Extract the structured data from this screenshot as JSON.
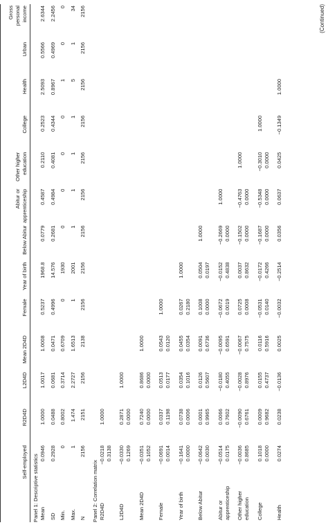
{
  "table": {
    "header": [
      "Self-employed",
      "R2D4D",
      "L2D4D",
      "Mean 2D4D",
      "Female",
      "Year of birth",
      "Below Abitur",
      "Abitur or apprenticeship",
      "Other higher education",
      "College",
      "Health",
      "Urban",
      "Gross personal income"
    ],
    "panels": [
      {
        "title": "Panel 1: Descriptive statistics",
        "rows": [
          {
            "label": "Mean",
            "values": [
              "0.0946",
              "1.0000",
              "1.0017",
              "1.0008",
              "0.5237",
              "1968.8",
              "0.0779",
              "0.4587",
              "0.2110",
              "0.2523",
              "2.5093",
              "0.5566",
              "2.6344"
            ]
          },
          {
            "label": "SD",
            "values": [
              "0.2928",
              "0.0488",
              "0.0681",
              "0.0471",
              "0.4996",
              "14.576",
              "0.2681",
              "0.4984",
              "0.4081",
              "0.4344",
              "0.8967",
              "0.4969",
              "2.2456"
            ]
          },
          {
            "label": "Min.",
            "values": [
              "0",
              "0.8002",
              "0.3714",
              "0.6709",
              "0",
              "1930",
              "0",
              "0",
              "0",
              "0",
              "1",
              "0",
              "0"
            ]
          },
          {
            "label": "Max.",
            "values": [
              "1",
              "1.474",
              "2.2727",
              "1.6513",
              "1",
              "2001",
              "1",
              "1",
              "1",
              "1",
              "5",
              "1",
              "34"
            ]
          },
          {
            "label": "N",
            "values": [
              "2156",
              "2151",
              "2156",
              "2138",
              "2156",
              "2156",
              "2156",
              "2156",
              "2156",
              "2156",
              "2156",
              "2156",
              "2156"
            ]
          }
        ]
      },
      {
        "title": "Panel 2: Correlation matrix",
        "rows": [
          {
            "label": "R2D4D",
            "values": [
              [
                "−0.0218",
                "0.3138"
              ],
              [
                "1.0000"
              ]
            ]
          },
          {
            "label": "L2D4D",
            "values": [
              [
                "−0.0330",
                "0.1269"
              ],
              [
                "0.2871",
                "0.0000"
              ],
              [
                "1.0000"
              ]
            ]
          },
          {
            "label": "Mean 2D4D",
            "values": [
              [
                "−0.0351",
                "0.1052"
              ],
              [
                "0.7240",
                "0.0000"
              ],
              [
                "0.8686",
                "0.0000"
              ],
              [
                "1.0000"
              ]
            ]
          },
          {
            "label": "Female",
            "values": [
              [
                "−0.0691",
                "0.0014"
              ],
              [
                "0.0337",
                "0.1198"
              ],
              [
                "0.0513",
                "0.0177"
              ],
              [
                "0.0543",
                "0.0120"
              ],
              [
                "1.0000"
              ]
            ]
          },
          {
            "label": "Year of birth",
            "values": [
              [
                "−0.1641",
                "0.0000"
              ],
              [
                "0.0738",
                "0.0006"
              ],
              [
                "0.0354",
                "0.1016"
              ],
              [
                "0.0455",
                "0.0354"
              ],
              [
                "0.0267",
                "0.2180"
              ],
              [
                "1.0000"
              ]
            ]
          },
          {
            "label": "Below Abitur",
            "values": [
              [
                "−0.0642",
                "0.0030"
              ],
              [
                "0.0001",
                "0.9965"
              ],
              [
                "0.0126",
                "0.5607"
              ],
              [
                "0.0091",
                "0.6736"
              ],
              [
                "0.1008",
                "0.0000"
              ],
              [
                "0.0504",
                "0.0197"
              ],
              [
                "1.0000"
              ]
            ]
          },
          {
            "label": "Abitur or apprenticeship",
            "values": [
              [
                "−0.0514",
                "0.0175"
              ],
              [
                "0.0066",
                "0.7602"
              ],
              [
                "−0.0180",
                "0.4055"
              ],
              [
                "−0.0095",
                "0.6591"
              ],
              [
                "−0.0672",
                "0.0019"
              ],
              [
                "−0.0152",
                "0.4838"
              ],
              [
                "−0.2669",
                "0.0000"
              ],
              [
                "1.0000"
              ]
            ]
          },
          {
            "label": "Other higher education",
            "values": [
              [
                "−0.0036",
                "0.8685"
              ],
              [
                "−0.0090",
                "0.6761"
              ],
              [
                "−0.0028",
                "0.8976"
              ],
              [
                "−0.0067",
                "0.7575"
              ],
              [
                "0.0725",
                "0.0008"
              ],
              [
                "0.0037",
                "0.8632"
              ],
              [
                "−0.1502",
                "0.0000"
              ],
              [
                "−0.4763",
                "0.0000"
              ],
              [
                "1.0000"
              ]
            ]
          },
          {
            "label": "College",
            "values": [
              [
                "0.1018",
                "0.0000"
              ],
              [
                "0.0009",
                "0.9682"
              ],
              [
                "0.0155",
                "0.4737"
              ],
              [
                "0.0116",
                "0.5916"
              ],
              [
                "−0.0531",
                "0.0140"
              ],
              [
                "−0.0172",
                "0.4266"
              ],
              [
                "−0.1687",
                "0.0000"
              ],
              [
                "−0.5348",
                "0.0000"
              ],
              [
                "−0.3010",
                "0.0000"
              ],
              [
                "1.0000"
              ]
            ]
          },
          {
            "label": "Health",
            "values": [
              [
                "0.0274"
              ],
              [
                "0.0238"
              ],
              [
                "−0.0136"
              ],
              [
                "0.0025"
              ],
              [
                "−0.0032"
              ],
              [
                "−0.2514"
              ],
              [
                "0.0356"
              ],
              [
                "0.0637"
              ],
              [
                "0.0425"
              ],
              [
                "−0.1349"
              ],
              [
                "1.0000"
              ]
            ]
          }
        ]
      }
    ],
    "note": "(Continued)"
  }
}
